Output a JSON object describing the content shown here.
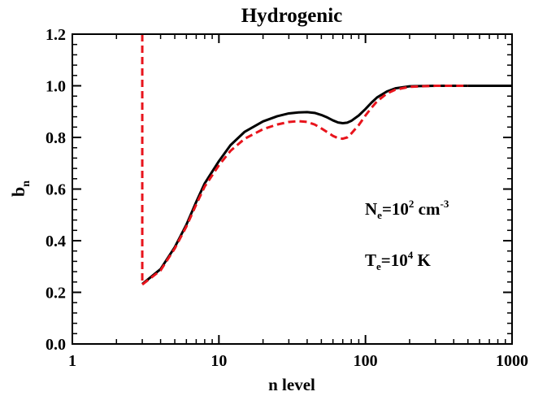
{
  "chart_data": {
    "type": "line",
    "title": "Hydrogenic",
    "xlabel": "n level",
    "ylabel": {
      "main": "b",
      "sub": "n"
    },
    "x_scale": "log",
    "xlim": [
      1,
      1000
    ],
    "ylim": [
      0,
      1.2
    ],
    "x_ticks": [
      {
        "value": 1,
        "label": "1"
      },
      {
        "value": 10,
        "label": "10"
      },
      {
        "value": 100,
        "label": "100"
      },
      {
        "value": 1000,
        "label": "1000"
      }
    ],
    "y_ticks": [
      {
        "value": 0.0,
        "label": "0.0"
      },
      {
        "value": 0.2,
        "label": "0.2"
      },
      {
        "value": 0.4,
        "label": "0.4"
      },
      {
        "value": 0.6,
        "label": "0.6"
      },
      {
        "value": 0.8,
        "label": "0.8"
      },
      {
        "value": 1.0,
        "label": "1.0"
      },
      {
        "value": 1.2,
        "label": "1.2"
      }
    ],
    "grid": false,
    "legend": "none",
    "annotations": [
      {
        "main": "N",
        "sub": "e",
        "rest": "=10",
        "sup": "2",
        "tail": " cm",
        "tail_sup": "-3"
      },
      {
        "main": "T",
        "sub": "e",
        "rest": "=10",
        "sup": "4",
        "tail": " K",
        "tail_sup": ""
      }
    ],
    "series": [
      {
        "style": "solid",
        "color": "#000000",
        "points": [
          [
            3,
            0.232
          ],
          [
            4,
            0.29
          ],
          [
            5,
            0.375
          ],
          [
            6,
            0.462
          ],
          [
            7,
            0.55
          ],
          [
            8,
            0.622
          ],
          [
            10,
            0.708
          ],
          [
            12,
            0.77
          ],
          [
            15,
            0.822
          ],
          [
            20,
            0.862
          ],
          [
            25,
            0.882
          ],
          [
            30,
            0.893
          ],
          [
            35,
            0.897
          ],
          [
            40,
            0.898
          ],
          [
            45,
            0.895
          ],
          [
            50,
            0.887
          ],
          [
            55,
            0.877
          ],
          [
            60,
            0.866
          ],
          [
            65,
            0.858
          ],
          [
            70,
            0.855
          ],
          [
            75,
            0.857
          ],
          [
            80,
            0.864
          ],
          [
            90,
            0.885
          ],
          [
            100,
            0.91
          ],
          [
            110,
            0.935
          ],
          [
            120,
            0.955
          ],
          [
            140,
            0.978
          ],
          [
            160,
            0.99
          ],
          [
            200,
            0.998
          ],
          [
            300,
            1.0
          ],
          [
            500,
            1.0
          ],
          [
            1000,
            1.0
          ]
        ]
      },
      {
        "style": "dashed",
        "color": "#e8141c",
        "points": [
          [
            3,
            1.2
          ],
          [
            3,
            0.23
          ],
          [
            4,
            0.285
          ],
          [
            5,
            0.37
          ],
          [
            6,
            0.455
          ],
          [
            7,
            0.54
          ],
          [
            8,
            0.61
          ],
          [
            10,
            0.692
          ],
          [
            12,
            0.748
          ],
          [
            15,
            0.795
          ],
          [
            20,
            0.832
          ],
          [
            25,
            0.85
          ],
          [
            30,
            0.86
          ],
          [
            35,
            0.863
          ],
          [
            40,
            0.86
          ],
          [
            45,
            0.85
          ],
          [
            50,
            0.835
          ],
          [
            55,
            0.82
          ],
          [
            60,
            0.806
          ],
          [
            65,
            0.797
          ],
          [
            70,
            0.795
          ],
          [
            75,
            0.8
          ],
          [
            80,
            0.815
          ],
          [
            90,
            0.848
          ],
          [
            100,
            0.885
          ],
          [
            110,
            0.915
          ],
          [
            120,
            0.94
          ],
          [
            140,
            0.97
          ],
          [
            160,
            0.985
          ],
          [
            200,
            0.996
          ],
          [
            300,
            1.0
          ],
          [
            500,
            1.0
          ]
        ]
      }
    ]
  }
}
